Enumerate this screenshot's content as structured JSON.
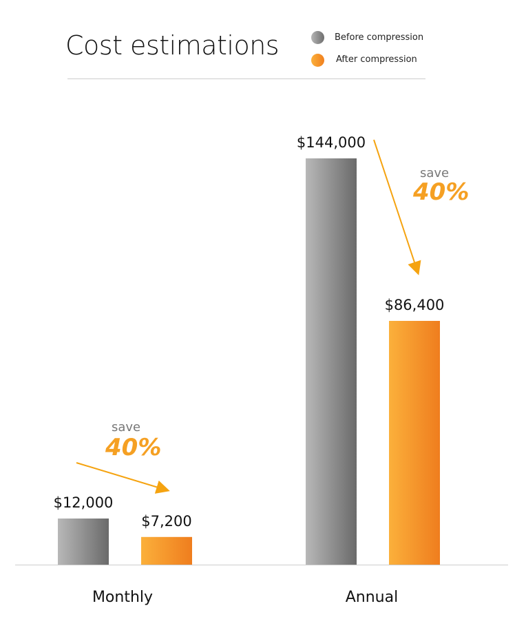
{
  "chart_data": {
    "type": "bar",
    "title": "Cost estimations",
    "categories": [
      "Monthly",
      "Annual"
    ],
    "series": [
      {
        "name": "Before compression",
        "values": [
          12000,
          144000
        ],
        "labels": [
          "$12,000",
          "$144,000"
        ],
        "color": "#7a7a7a"
      },
      {
        "name": "After compression",
        "values": [
          7200,
          86400
        ],
        "labels": [
          "$7,200",
          "$86,400"
        ],
        "color": "#f28a1f"
      }
    ],
    "ylim": [
      0,
      144000
    ],
    "legend": "top-right",
    "grid": false,
    "annotations": [
      {
        "category": "Monthly",
        "save_label": "save",
        "percent": "40%"
      },
      {
        "category": "Annual",
        "save_label": "save",
        "percent": "40%"
      }
    ]
  }
}
